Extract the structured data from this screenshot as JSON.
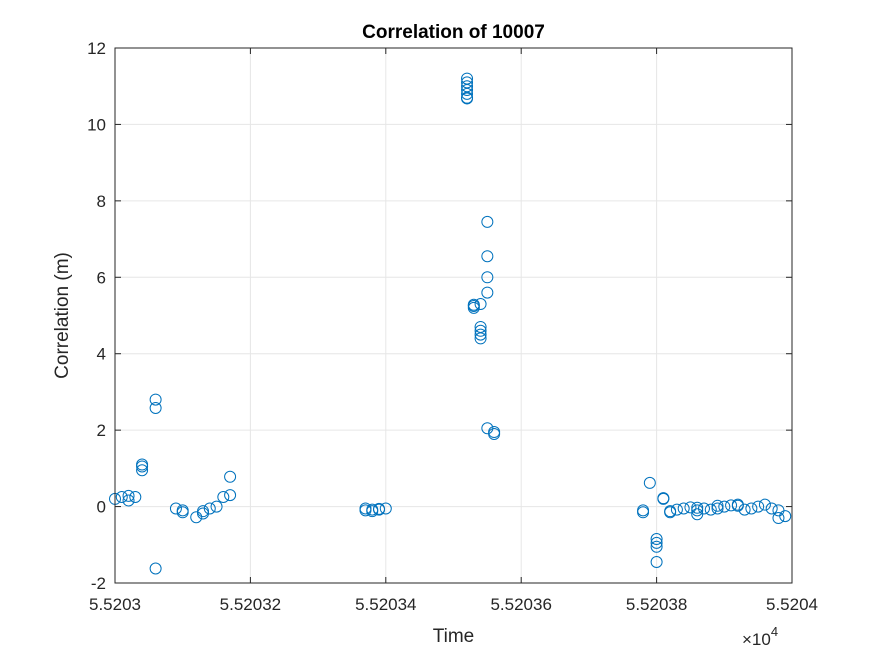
{
  "chart_data": {
    "type": "scatter",
    "title": "Correlation of 10007",
    "xlabel": "Time",
    "ylabel": "Correlation (m)",
    "x_exponent_label": "×10",
    "x_exponent_power": "4",
    "xlim": [
      5.5203,
      5.5204
    ],
    "ylim": [
      -2,
      12
    ],
    "xticks": [
      5.5203,
      5.52032,
      5.52034,
      5.52036,
      5.52038,
      5.5204
    ],
    "xtick_labels": [
      "5.5203",
      "5.52032",
      "5.52034",
      "5.52036",
      "5.52038",
      "5.5204"
    ],
    "yticks": [
      -2,
      0,
      2,
      4,
      6,
      8,
      10,
      12
    ],
    "ytick_labels": [
      "-2",
      "0",
      "2",
      "4",
      "6",
      "8",
      "10",
      "12"
    ],
    "grid": true,
    "marker": "open-circle",
    "color": "#0072BD",
    "series": [
      {
        "points": [
          [
            5.5203,
            0.2
          ],
          [
            5.520301,
            0.25
          ],
          [
            5.520302,
            0.28
          ],
          [
            5.520302,
            0.16
          ],
          [
            5.520303,
            0.25
          ],
          [
            5.520304,
            0.95
          ],
          [
            5.520304,
            1.05
          ],
          [
            5.520304,
            1.1
          ],
          [
            5.520306,
            2.8
          ],
          [
            5.520306,
            2.58
          ],
          [
            5.520306,
            -1.62
          ],
          [
            5.520309,
            -0.05
          ],
          [
            5.52031,
            -0.1
          ],
          [
            5.52031,
            -0.15
          ],
          [
            5.520312,
            -0.28
          ],
          [
            5.520313,
            -0.18
          ],
          [
            5.520313,
            -0.12
          ],
          [
            5.520314,
            -0.05
          ],
          [
            5.520315,
            0.0
          ],
          [
            5.520316,
            0.25
          ],
          [
            5.520317,
            0.3
          ],
          [
            5.520317,
            0.78
          ],
          [
            5.520337,
            -0.05
          ],
          [
            5.520337,
            -0.1
          ],
          [
            5.520338,
            -0.12
          ],
          [
            5.520338,
            -0.08
          ],
          [
            5.520339,
            -0.08
          ],
          [
            5.520339,
            -0.06
          ],
          [
            5.52034,
            -0.05
          ],
          [
            5.520352,
            11.2
          ],
          [
            5.520352,
            11.1
          ],
          [
            5.520352,
            11.0
          ],
          [
            5.520352,
            10.9
          ],
          [
            5.520352,
            10.8
          ],
          [
            5.520352,
            10.7
          ],
          [
            5.520352,
            10.68
          ],
          [
            5.520353,
            5.25
          ],
          [
            5.520353,
            5.2
          ],
          [
            5.520353,
            5.28
          ],
          [
            5.520354,
            4.4
          ],
          [
            5.520354,
            4.5
          ],
          [
            5.520354,
            4.6
          ],
          [
            5.520354,
            4.7
          ],
          [
            5.520354,
            5.3
          ],
          [
            5.520355,
            7.45
          ],
          [
            5.520355,
            6.55
          ],
          [
            5.520355,
            6.0
          ],
          [
            5.520355,
            5.6
          ],
          [
            5.520355,
            2.05
          ],
          [
            5.520356,
            1.95
          ],
          [
            5.520356,
            1.9
          ],
          [
            5.520378,
            -0.15
          ],
          [
            5.520378,
            -0.1
          ],
          [
            5.520379,
            0.62
          ],
          [
            5.52038,
            -1.45
          ],
          [
            5.52038,
            -0.85
          ],
          [
            5.52038,
            -0.95
          ],
          [
            5.52038,
            -1.05
          ],
          [
            5.520381,
            0.22
          ],
          [
            5.520381,
            0.2
          ],
          [
            5.520382,
            -0.15
          ],
          [
            5.520382,
            -0.12
          ],
          [
            5.520383,
            -0.08
          ],
          [
            5.520384,
            -0.05
          ],
          [
            5.520385,
            -0.02
          ],
          [
            5.520386,
            -0.1
          ],
          [
            5.520386,
            -0.2
          ],
          [
            5.520386,
            -0.03
          ],
          [
            5.520387,
            -0.05
          ],
          [
            5.520388,
            -0.08
          ],
          [
            5.520389,
            -0.05
          ],
          [
            5.520389,
            0.02
          ],
          [
            5.52039,
            0.0
          ],
          [
            5.520391,
            0.03
          ],
          [
            5.520392,
            0.05
          ],
          [
            5.520392,
            0.02
          ],
          [
            5.520393,
            -0.08
          ],
          [
            5.520394,
            -0.05
          ],
          [
            5.520395,
            0.0
          ],
          [
            5.520396,
            0.05
          ],
          [
            5.520397,
            -0.05
          ],
          [
            5.520398,
            -0.1
          ],
          [
            5.520398,
            -0.3
          ],
          [
            5.520399,
            -0.25
          ]
        ]
      }
    ]
  }
}
